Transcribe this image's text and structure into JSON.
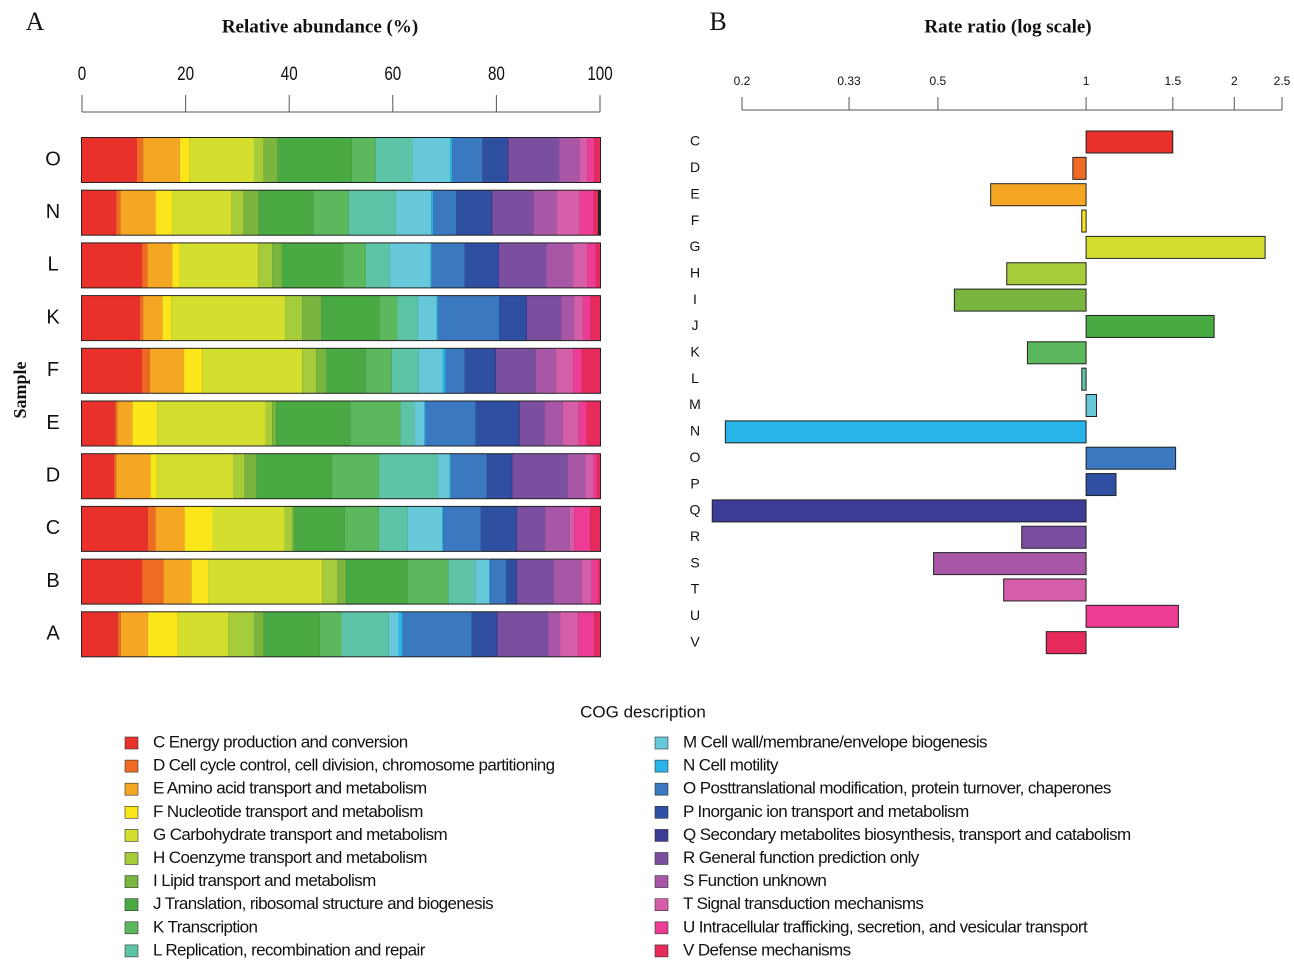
{
  "chart_data": [
    {
      "type": "stacked_bar",
      "panel": "A",
      "title": "Relative abundance (%)",
      "y_label": "Sample",
      "categories": [
        "O",
        "N",
        "L",
        "K",
        "F",
        "E",
        "D",
        "C",
        "B",
        "A"
      ],
      "xlim": [
        0,
        100
      ],
      "xticks": [
        0,
        20,
        40,
        60,
        80,
        100
      ],
      "legend_title": "COG description",
      "series": [
        {
          "name": "C Energy production and conversion",
          "color": "#e8312a",
          "values": [
            10.6,
            6.6,
            11.6,
            11.2,
            11.6,
            6.4,
            6.2,
            12.7,
            11.6,
            6.9
          ]
        },
        {
          "name": "D Cell cycle control, cell division, chromosome partitioning",
          "color": "#ef6a23",
          "values": [
            1.2,
            0.8,
            1.0,
            0.6,
            1.5,
            0.4,
            0.4,
            1.5,
            4.1,
            0.6
          ]
        },
        {
          "name": "E Amino acid transport and metabolism",
          "color": "#f5a623",
          "values": [
            7.1,
            6.8,
            4.8,
            3.7,
            6.6,
            2.9,
            6.6,
            5.6,
            5.4,
            5.2
          ]
        },
        {
          "name": "F Nucleotide transport and metabolism",
          "color": "#fbe61b",
          "values": [
            1.9,
            3.3,
            1.5,
            1.7,
            3.5,
            4.8,
            1.2,
            5.4,
            3.3,
            5.8
          ]
        },
        {
          "name": "G Carbohydrate transport and metabolism",
          "color": "#d4de2e",
          "values": [
            12.4,
            11.4,
            15.1,
            22.0,
            19.3,
            21.0,
            14.9,
            13.9,
            22.0,
            9.7
          ]
        },
        {
          "name": "H Coenzyme transport and metabolism",
          "color": "#a6cc3a",
          "values": [
            1.9,
            2.3,
            2.7,
            3.3,
            2.7,
            1.2,
            2.1,
            1.5,
            2.9,
            5.0
          ]
        },
        {
          "name": "I Lipid transport and metabolism",
          "color": "#7ab63f",
          "values": [
            2.7,
            2.9,
            1.9,
            3.7,
            1.9,
            0.8,
            2.3,
            0.4,
            1.7,
            1.9
          ]
        },
        {
          "name": "J Translation, ribosomal structure and biogenesis",
          "color": "#49a942",
          "values": [
            14.3,
            10.6,
            11.8,
            11.2,
            7.7,
            14.3,
            14.5,
            9.7,
            11.8,
            10.8
          ]
        },
        {
          "name": "K Transcription",
          "color": "#5cb85c",
          "values": [
            4.6,
            6.8,
            4.4,
            3.5,
            5.0,
            9.7,
            9.1,
            6.6,
            7.9,
            4.2
          ]
        },
        {
          "name": "L Replication, recombination and repair",
          "color": "#5ec4a8",
          "values": [
            7.1,
            9.1,
            4.6,
            3.9,
            5.2,
            2.7,
            11.4,
            5.6,
            5.2,
            9.1
          ]
        },
        {
          "name": "M Cell wall/membrane/envelope biogenesis",
          "color": "#66c8d8",
          "values": [
            7.3,
            6.8,
            7.9,
            3.7,
            4.6,
            1.9,
            2.3,
            6.6,
            2.7,
            1.9
          ]
        },
        {
          "name": "N Cell motility",
          "color": "#28b4e8",
          "values": [
            0.4,
            0.4,
            0.2,
            0.2,
            0.6,
            0.2,
            0.2,
            0.2,
            0.2,
            0.8
          ]
        },
        {
          "name": "O Posttranslational modification, protein turnover, chaperones",
          "color": "#3a78bf",
          "values": [
            5.8,
            4.4,
            6.4,
            11.8,
            3.7,
            9.7,
            6.9,
            7.3,
            3.1,
            13.3
          ]
        },
        {
          "name": "P Inorganic ion transport and metabolism",
          "color": "#2e4fa2",
          "values": [
            4.8,
            6.8,
            6.4,
            5.2,
            5.8,
            8.3,
            4.8,
            6.8,
            1.9,
            4.8
          ]
        },
        {
          "name": "Q Secondary metabolites biosynthesis, transport and catabolism",
          "color": "#3c3c96",
          "values": [
            0.2,
            0.2,
            0.2,
            0.2,
            0.2,
            0.2,
            0.2,
            0.2,
            0.2,
            0.2
          ]
        },
        {
          "name": "R General function prediction only",
          "color": "#7b4fa0",
          "values": [
            9.8,
            7.9,
            9.1,
            6.6,
            7.7,
            4.8,
            10.6,
            5.4,
            7.1,
            9.8
          ]
        },
        {
          "name": "S Function unknown",
          "color": "#a856a6",
          "values": [
            3.9,
            4.6,
            5.2,
            2.5,
            3.9,
            3.5,
            3.5,
            4.8,
            5.4,
            2.3
          ]
        },
        {
          "name": "T Signal transduction mechanisms",
          "color": "#d45fa8",
          "values": [
            1.5,
            4.4,
            2.7,
            1.7,
            3.3,
            3.1,
            1.5,
            0.8,
            1.9,
            3.5
          ]
        },
        {
          "name": "U Intracellular trafficking, secretion, and vesicular transport",
          "color": "#ec3c94",
          "values": [
            1.4,
            2.7,
            1.7,
            1.5,
            1.7,
            1.5,
            0.7,
            3.1,
            1.2,
            3.1
          ]
        },
        {
          "name": "V Defense mechanisms",
          "color": "#e72a5c",
          "values": [
            1.1,
            0.8,
            0.8,
            1.8,
            3.5,
            2.6,
            0.6,
            1.9,
            0.4,
            1.1
          ]
        }
      ]
    },
    {
      "type": "bar",
      "panel": "B",
      "title": "Rate ratio (log scale)",
      "log_scale": true,
      "categories": [
        "C",
        "D",
        "E",
        "F",
        "G",
        "H",
        "I",
        "J",
        "K",
        "L",
        "M",
        "N",
        "O",
        "P",
        "Q",
        "R",
        "S",
        "T",
        "U",
        "V"
      ],
      "values": [
        1.5,
        0.94,
        0.64,
        0.98,
        2.31,
        0.69,
        0.54,
        1.82,
        0.76,
        0.98,
        1.05,
        0.185,
        1.52,
        1.15,
        0.174,
        0.74,
        0.49,
        0.68,
        1.54,
        0.83
      ],
      "colors": [
        "#e8312a",
        "#ef6a23",
        "#f5a623",
        "#fbe61b",
        "#d4de2e",
        "#a6cc3a",
        "#7ab63f",
        "#49a942",
        "#5cb85c",
        "#5ec4a8",
        "#66c8d8",
        "#28b4e8",
        "#3a78bf",
        "#2e4fa2",
        "#3c3c96",
        "#7b4fa0",
        "#a856a6",
        "#d45fa8",
        "#ec3c94",
        "#e72a5c"
      ],
      "xlim": [
        0.2,
        2.5
      ],
      "xticks": [
        0.2,
        0.33,
        0.5,
        1,
        1.5,
        2,
        2.5
      ]
    }
  ]
}
